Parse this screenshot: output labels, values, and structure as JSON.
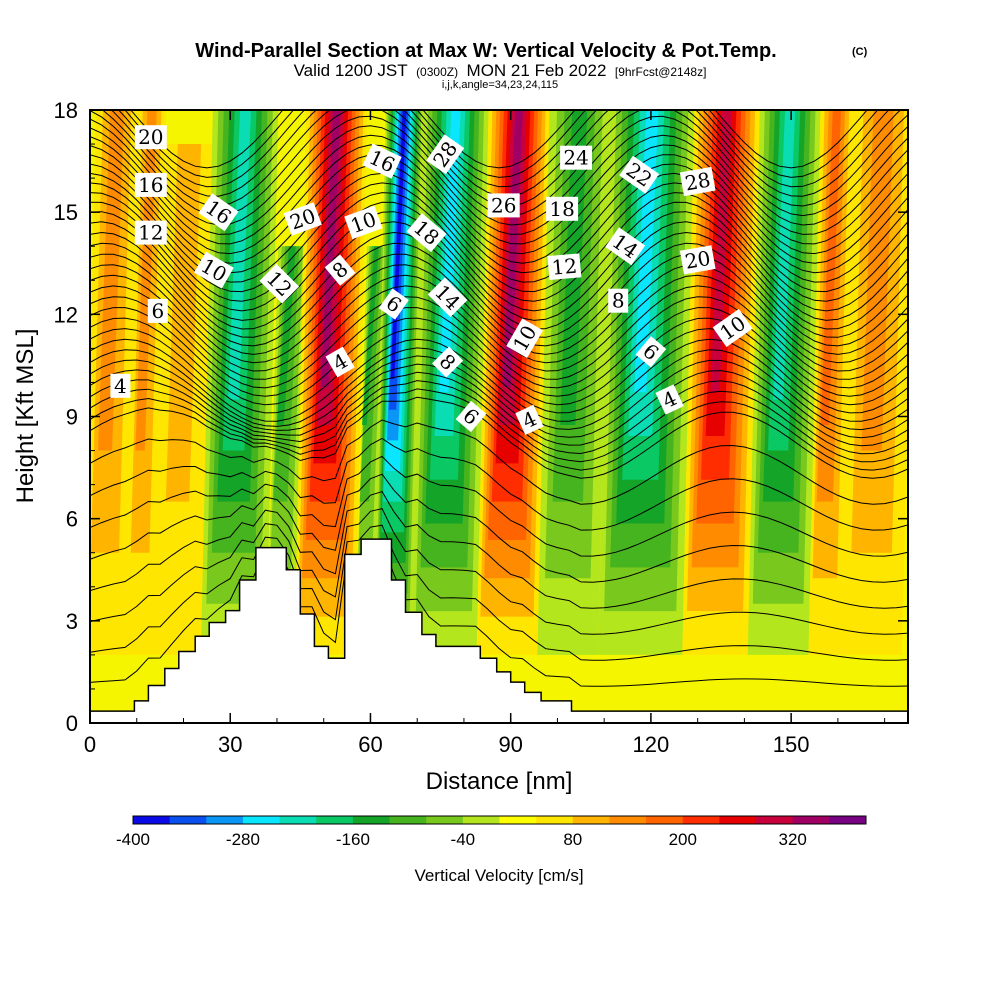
{
  "chart_data": {
    "type": "heatmap",
    "title": "Wind-Parallel Section at Max W: Vertical Velocity & Pot.Temp.",
    "title_mark": "(C)",
    "valid_prefix": "Valid 1200 JST",
    "valid_z": "(0300Z)",
    "valid_date": "MON 21 Feb 2022",
    "valid_fcst": "[9hrFcst@2148z]",
    "subtitle_params": "i,j,k,angle=34,23,24,115",
    "xlabel": "Distance [nm]",
    "ylabel": "Height [Kft MSL]",
    "xlim": [
      0,
      175
    ],
    "ylim": [
      0,
      18
    ],
    "x_ticks": [
      "0",
      "30",
      "60",
      "90",
      "120",
      "150"
    ],
    "x_tick_values": [
      0,
      30,
      60,
      90,
      120,
      150
    ],
    "y_ticks": [
      "0",
      "3",
      "6",
      "9",
      "12",
      "15",
      "18"
    ],
    "y_tick_values": [
      0,
      3,
      6,
      9,
      12,
      15,
      18
    ],
    "colorbar": {
      "label": "Vertical Velocity [cm/s]",
      "tick_labels": [
        "-400",
        "-280",
        "-160",
        "-40",
        "80",
        "200",
        "320"
      ],
      "tick_values": [
        -400,
        -280,
        -160,
        -40,
        80,
        200,
        320
      ],
      "bins": [
        -400,
        -360,
        -320,
        -280,
        -240,
        -200,
        -160,
        -120,
        -80,
        -40,
        0,
        40,
        80,
        120,
        160,
        200,
        240,
        280,
        320,
        360
      ],
      "colors": [
        "#0a0ae8",
        "#0a50f0",
        "#0a96f5",
        "#0ae6ff",
        "#0adcb4",
        "#0ac864",
        "#14a528",
        "#46b41e",
        "#78c81e",
        "#b4e61e",
        "#ffff00",
        "#ffe600",
        "#ffb400",
        "#ff8c00",
        "#ff6400",
        "#ff2d00",
        "#e60000",
        "#c8003c",
        "#a00064",
        "#780082"
      ]
    },
    "velocity_bands": [
      {
        "x_from": 0,
        "x_to": 9,
        "h_top": 18,
        "sign": "up",
        "level": 2
      },
      {
        "x_from": 9,
        "x_to": 15,
        "h_top": 18,
        "sign": "up",
        "level": 2
      },
      {
        "x_from": 15,
        "x_to": 25,
        "h_top": 17,
        "sign": "up",
        "level": 1
      },
      {
        "x_from": 25,
        "x_to": 39,
        "h_top": 18,
        "sign": "down",
        "level": 5
      },
      {
        "x_from": 39,
        "x_to": 45,
        "h_top": 14,
        "sign": "down",
        "level": 3
      },
      {
        "x_from": 45,
        "x_to": 58,
        "h_top": 18,
        "sign": "up",
        "level": 7
      },
      {
        "x_from": 58,
        "x_to": 62,
        "h_top": 14,
        "sign": "down",
        "level": 3
      },
      {
        "x_from": 62,
        "x_to": 70,
        "h_top": 18,
        "sign": "down",
        "level": 9
      },
      {
        "x_from": 70,
        "x_to": 84,
        "h_top": 18,
        "sign": "down",
        "level": 6
      },
      {
        "x_from": 84,
        "x_to": 97,
        "h_top": 18,
        "sign": "up",
        "level": 7
      },
      {
        "x_from": 97,
        "x_to": 110,
        "h_top": 18,
        "sign": "down",
        "level": 3
      },
      {
        "x_from": 110,
        "x_to": 128,
        "h_top": 18,
        "sign": "down",
        "level": 6
      },
      {
        "x_from": 128,
        "x_to": 142,
        "h_top": 18,
        "sign": "up",
        "level": 6
      },
      {
        "x_from": 142,
        "x_to": 155,
        "h_top": 18,
        "sign": "down",
        "level": 5
      },
      {
        "x_from": 155,
        "x_to": 162,
        "h_top": 18,
        "sign": "up",
        "level": 3
      },
      {
        "x_from": 162,
        "x_to": 175,
        "h_top": 18,
        "sign": "up",
        "level": 2
      }
    ],
    "terrain": [
      {
        "x": 0,
        "h": 0.35
      },
      {
        "x": 9.5,
        "h": 0.35
      },
      {
        "x": 9.5,
        "h": 0.65
      },
      {
        "x": 12.5,
        "h": 0.65
      },
      {
        "x": 12.5,
        "h": 1.1
      },
      {
        "x": 16,
        "h": 1.1
      },
      {
        "x": 16,
        "h": 1.6
      },
      {
        "x": 19,
        "h": 1.6
      },
      {
        "x": 19,
        "h": 2.1
      },
      {
        "x": 22.5,
        "h": 2.1
      },
      {
        "x": 22.5,
        "h": 2.55
      },
      {
        "x": 25.5,
        "h": 2.55
      },
      {
        "x": 25.5,
        "h": 2.95
      },
      {
        "x": 29,
        "h": 2.95
      },
      {
        "x": 29,
        "h": 3.3
      },
      {
        "x": 32,
        "h": 3.3
      },
      {
        "x": 32,
        "h": 4.2
      },
      {
        "x": 35.5,
        "h": 4.2
      },
      {
        "x": 35.5,
        "h": 5.15
      },
      {
        "x": 42,
        "h": 5.15
      },
      {
        "x": 42,
        "h": 4.5
      },
      {
        "x": 45,
        "h": 4.5
      },
      {
        "x": 45,
        "h": 3.2
      },
      {
        "x": 48,
        "h": 3.2
      },
      {
        "x": 48,
        "h": 2.25
      },
      {
        "x": 51,
        "h": 2.25
      },
      {
        "x": 51,
        "h": 1.9
      },
      {
        "x": 54.5,
        "h": 1.9
      },
      {
        "x": 54.5,
        "h": 4.95
      },
      {
        "x": 58,
        "h": 4.95
      },
      {
        "x": 58,
        "h": 5.4
      },
      {
        "x": 64.5,
        "h": 5.4
      },
      {
        "x": 64.5,
        "h": 4.2
      },
      {
        "x": 67.5,
        "h": 4.2
      },
      {
        "x": 67.5,
        "h": 3.25
      },
      {
        "x": 71,
        "h": 3.25
      },
      {
        "x": 71,
        "h": 2.6
      },
      {
        "x": 74,
        "h": 2.6
      },
      {
        "x": 74,
        "h": 2.25
      },
      {
        "x": 83.5,
        "h": 2.25
      },
      {
        "x": 83.5,
        "h": 1.9
      },
      {
        "x": 87,
        "h": 1.9
      },
      {
        "x": 87,
        "h": 1.5
      },
      {
        "x": 90,
        "h": 1.5
      },
      {
        "x": 90,
        "h": 1.2
      },
      {
        "x": 93,
        "h": 1.2
      },
      {
        "x": 93,
        "h": 0.9
      },
      {
        "x": 96.5,
        "h": 0.9
      },
      {
        "x": 96.5,
        "h": 0.65
      },
      {
        "x": 103,
        "h": 0.65
      },
      {
        "x": 103,
        "h": 0.35
      },
      {
        "x": 175,
        "h": 0.35
      }
    ],
    "theta_line_count": 44,
    "contour_labels": [
      {
        "text": "20",
        "x": 13,
        "h": 17.2,
        "angle": 0
      },
      {
        "text": "16",
        "x": 13,
        "h": 15.8,
        "angle": 0
      },
      {
        "text": "12",
        "x": 13,
        "h": 14.4,
        "angle": 0
      },
      {
        "text": "6",
        "x": 14.5,
        "h": 12.1,
        "angle": 0
      },
      {
        "text": "4",
        "x": 6.5,
        "h": 9.9,
        "angle": 0
      },
      {
        "text": "16",
        "x": 27.5,
        "h": 15.0,
        "angle": 35
      },
      {
        "text": "10",
        "x": 26.5,
        "h": 13.3,
        "angle": 30
      },
      {
        "text": "12",
        "x": 40.5,
        "h": 12.9,
        "angle": 45
      },
      {
        "text": "20",
        "x": 45.5,
        "h": 14.8,
        "angle": -20
      },
      {
        "text": "8",
        "x": 53.5,
        "h": 13.3,
        "angle": -40
      },
      {
        "text": "10",
        "x": 58.5,
        "h": 14.7,
        "angle": -20
      },
      {
        "text": "4",
        "x": 53.5,
        "h": 10.6,
        "angle": -30
      },
      {
        "text": "16",
        "x": 62.5,
        "h": 16.5,
        "angle": 25
      },
      {
        "text": "6",
        "x": 65,
        "h": 12.3,
        "angle": 35
      },
      {
        "text": "28",
        "x": 76,
        "h": 16.7,
        "angle": -55
      },
      {
        "text": "18",
        "x": 72,
        "h": 14.4,
        "angle": 40
      },
      {
        "text": "14",
        "x": 76.5,
        "h": 12.5,
        "angle": 45
      },
      {
        "text": "8",
        "x": 76.5,
        "h": 10.6,
        "angle": 45
      },
      {
        "text": "6",
        "x": 81.5,
        "h": 9.0,
        "angle": 40
      },
      {
        "text": "26",
        "x": 88.5,
        "h": 15.2,
        "angle": 0
      },
      {
        "text": "10",
        "x": 93,
        "h": 11.3,
        "angle": -60
      },
      {
        "text": "4",
        "x": 94,
        "h": 8.9,
        "angle": -25
      },
      {
        "text": "24",
        "x": 104,
        "h": 16.6,
        "angle": 0
      },
      {
        "text": "18",
        "x": 101,
        "h": 15.1,
        "angle": 0
      },
      {
        "text": "12",
        "x": 101.5,
        "h": 13.4,
        "angle": -5
      },
      {
        "text": "22",
        "x": 117.5,
        "h": 16.1,
        "angle": 35
      },
      {
        "text": "14",
        "x": 114.5,
        "h": 14.0,
        "angle": 35
      },
      {
        "text": "8",
        "x": 113,
        "h": 12.4,
        "angle": 0
      },
      {
        "text": "6",
        "x": 120,
        "h": 10.9,
        "angle": 40
      },
      {
        "text": "4",
        "x": 124,
        "h": 9.5,
        "angle": -25
      },
      {
        "text": "28",
        "x": 130,
        "h": 15.9,
        "angle": -10
      },
      {
        "text": "20",
        "x": 130,
        "h": 13.6,
        "angle": -10
      },
      {
        "text": "10",
        "x": 137.5,
        "h": 11.6,
        "angle": -35
      }
    ]
  }
}
